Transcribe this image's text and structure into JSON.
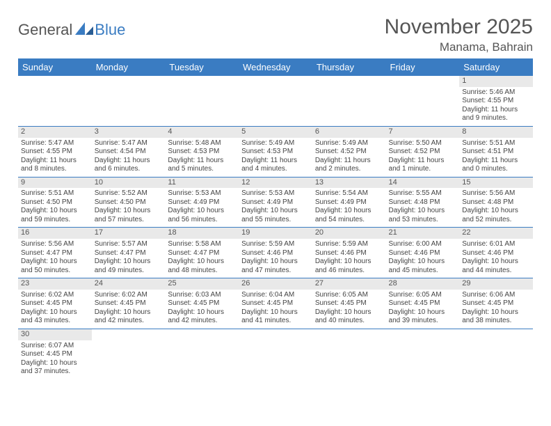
{
  "logo": {
    "textA": "General",
    "textB": "Blue"
  },
  "title": "November 2025",
  "location": "Manama, Bahrain",
  "colors": {
    "header_bg": "#3a7cc2",
    "header_text": "#ffffff",
    "daynum_bg": "#e9e9e9",
    "row_border": "#3a7cc2"
  },
  "weekdays": [
    "Sunday",
    "Monday",
    "Tuesday",
    "Wednesday",
    "Thursday",
    "Friday",
    "Saturday"
  ],
  "weeks": [
    [
      null,
      null,
      null,
      null,
      null,
      null,
      {
        "n": "1",
        "sr": "Sunrise: 5:46 AM",
        "ss": "Sunset: 4:55 PM",
        "dl": "Daylight: 11 hours and 9 minutes."
      }
    ],
    [
      {
        "n": "2",
        "sr": "Sunrise: 5:47 AM",
        "ss": "Sunset: 4:55 PM",
        "dl": "Daylight: 11 hours and 8 minutes."
      },
      {
        "n": "3",
        "sr": "Sunrise: 5:47 AM",
        "ss": "Sunset: 4:54 PM",
        "dl": "Daylight: 11 hours and 6 minutes."
      },
      {
        "n": "4",
        "sr": "Sunrise: 5:48 AM",
        "ss": "Sunset: 4:53 PM",
        "dl": "Daylight: 11 hours and 5 minutes."
      },
      {
        "n": "5",
        "sr": "Sunrise: 5:49 AM",
        "ss": "Sunset: 4:53 PM",
        "dl": "Daylight: 11 hours and 4 minutes."
      },
      {
        "n": "6",
        "sr": "Sunrise: 5:49 AM",
        "ss": "Sunset: 4:52 PM",
        "dl": "Daylight: 11 hours and 2 minutes."
      },
      {
        "n": "7",
        "sr": "Sunrise: 5:50 AM",
        "ss": "Sunset: 4:52 PM",
        "dl": "Daylight: 11 hours and 1 minute."
      },
      {
        "n": "8",
        "sr": "Sunrise: 5:51 AM",
        "ss": "Sunset: 4:51 PM",
        "dl": "Daylight: 11 hours and 0 minutes."
      }
    ],
    [
      {
        "n": "9",
        "sr": "Sunrise: 5:51 AM",
        "ss": "Sunset: 4:50 PM",
        "dl": "Daylight: 10 hours and 59 minutes."
      },
      {
        "n": "10",
        "sr": "Sunrise: 5:52 AM",
        "ss": "Sunset: 4:50 PM",
        "dl": "Daylight: 10 hours and 57 minutes."
      },
      {
        "n": "11",
        "sr": "Sunrise: 5:53 AM",
        "ss": "Sunset: 4:49 PM",
        "dl": "Daylight: 10 hours and 56 minutes."
      },
      {
        "n": "12",
        "sr": "Sunrise: 5:53 AM",
        "ss": "Sunset: 4:49 PM",
        "dl": "Daylight: 10 hours and 55 minutes."
      },
      {
        "n": "13",
        "sr": "Sunrise: 5:54 AM",
        "ss": "Sunset: 4:49 PM",
        "dl": "Daylight: 10 hours and 54 minutes."
      },
      {
        "n": "14",
        "sr": "Sunrise: 5:55 AM",
        "ss": "Sunset: 4:48 PM",
        "dl": "Daylight: 10 hours and 53 minutes."
      },
      {
        "n": "15",
        "sr": "Sunrise: 5:56 AM",
        "ss": "Sunset: 4:48 PM",
        "dl": "Daylight: 10 hours and 52 minutes."
      }
    ],
    [
      {
        "n": "16",
        "sr": "Sunrise: 5:56 AM",
        "ss": "Sunset: 4:47 PM",
        "dl": "Daylight: 10 hours and 50 minutes."
      },
      {
        "n": "17",
        "sr": "Sunrise: 5:57 AM",
        "ss": "Sunset: 4:47 PM",
        "dl": "Daylight: 10 hours and 49 minutes."
      },
      {
        "n": "18",
        "sr": "Sunrise: 5:58 AM",
        "ss": "Sunset: 4:47 PM",
        "dl": "Daylight: 10 hours and 48 minutes."
      },
      {
        "n": "19",
        "sr": "Sunrise: 5:59 AM",
        "ss": "Sunset: 4:46 PM",
        "dl": "Daylight: 10 hours and 47 minutes."
      },
      {
        "n": "20",
        "sr": "Sunrise: 5:59 AM",
        "ss": "Sunset: 4:46 PM",
        "dl": "Daylight: 10 hours and 46 minutes."
      },
      {
        "n": "21",
        "sr": "Sunrise: 6:00 AM",
        "ss": "Sunset: 4:46 PM",
        "dl": "Daylight: 10 hours and 45 minutes."
      },
      {
        "n": "22",
        "sr": "Sunrise: 6:01 AM",
        "ss": "Sunset: 4:46 PM",
        "dl": "Daylight: 10 hours and 44 minutes."
      }
    ],
    [
      {
        "n": "23",
        "sr": "Sunrise: 6:02 AM",
        "ss": "Sunset: 4:45 PM",
        "dl": "Daylight: 10 hours and 43 minutes."
      },
      {
        "n": "24",
        "sr": "Sunrise: 6:02 AM",
        "ss": "Sunset: 4:45 PM",
        "dl": "Daylight: 10 hours and 42 minutes."
      },
      {
        "n": "25",
        "sr": "Sunrise: 6:03 AM",
        "ss": "Sunset: 4:45 PM",
        "dl": "Daylight: 10 hours and 42 minutes."
      },
      {
        "n": "26",
        "sr": "Sunrise: 6:04 AM",
        "ss": "Sunset: 4:45 PM",
        "dl": "Daylight: 10 hours and 41 minutes."
      },
      {
        "n": "27",
        "sr": "Sunrise: 6:05 AM",
        "ss": "Sunset: 4:45 PM",
        "dl": "Daylight: 10 hours and 40 minutes."
      },
      {
        "n": "28",
        "sr": "Sunrise: 6:05 AM",
        "ss": "Sunset: 4:45 PM",
        "dl": "Daylight: 10 hours and 39 minutes."
      },
      {
        "n": "29",
        "sr": "Sunrise: 6:06 AM",
        "ss": "Sunset: 4:45 PM",
        "dl": "Daylight: 10 hours and 38 minutes."
      }
    ],
    [
      {
        "n": "30",
        "sr": "Sunrise: 6:07 AM",
        "ss": "Sunset: 4:45 PM",
        "dl": "Daylight: 10 hours and 37 minutes."
      },
      null,
      null,
      null,
      null,
      null,
      null
    ]
  ]
}
